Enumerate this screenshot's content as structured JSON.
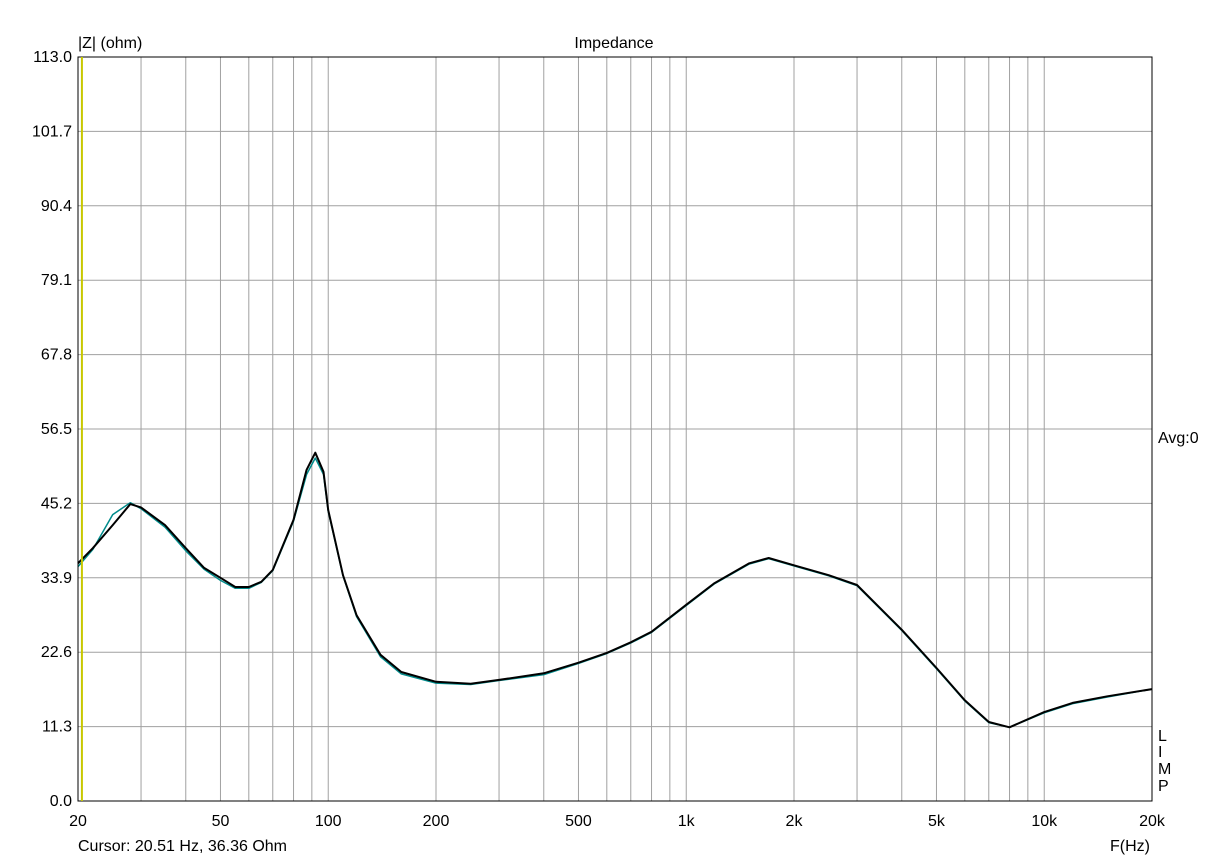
{
  "chart_data": {
    "type": "line",
    "title": "Impedance",
    "xlabel": "F(Hz)",
    "ylabel": "|Z| (ohm)",
    "x_scale": "log",
    "xlim": [
      20,
      20000
    ],
    "ylim": [
      0,
      113
    ],
    "grid": true,
    "y_ticks": [
      "0.0",
      "11.3",
      "22.6",
      "33.9",
      "45.2",
      "56.5",
      "67.8",
      "79.1",
      "90.4",
      "101.7",
      "113.0"
    ],
    "x_ticks": [
      {
        "v": 20,
        "label": "20"
      },
      {
        "v": 50,
        "label": "50"
      },
      {
        "v": 100,
        "label": "100"
      },
      {
        "v": 200,
        "label": "200"
      },
      {
        "v": 500,
        "label": "500"
      },
      {
        "v": 1000,
        "label": "1k"
      },
      {
        "v": 2000,
        "label": "2k"
      },
      {
        "v": 5000,
        "label": "5k"
      },
      {
        "v": 10000,
        "label": "10k"
      },
      {
        "v": 20000,
        "label": "20k"
      }
    ],
    "x": [
      20,
      22,
      25,
      28,
      30,
      35,
      40,
      45,
      50,
      55,
      60,
      65,
      70,
      80,
      87,
      92,
      97,
      100,
      110,
      120,
      140,
      160,
      200,
      250,
      300,
      400,
      500,
      600,
      700,
      800,
      1000,
      1200,
      1500,
      1700,
      2000,
      2500,
      3000,
      4000,
      5000,
      6000,
      7000,
      8000,
      10000,
      12000,
      15000,
      20000
    ],
    "series": [
      {
        "color": "#008b8b",
        "values": [
          35.6,
          38.2,
          43.5,
          45.3,
          44.4,
          41.6,
          38.0,
          35.2,
          33.5,
          32.3,
          32.3,
          33.2,
          35.0,
          42.5,
          49.6,
          52.1,
          49.6,
          44.0,
          34.2,
          28.0,
          21.9,
          19.3,
          17.9,
          17.7,
          18.3,
          19.2,
          20.9,
          22.4,
          24.0,
          25.6,
          29.7,
          33.0,
          36.0,
          36.8,
          35.7,
          34.2,
          32.7,
          25.9,
          20.1,
          15.2,
          11.9,
          11.2,
          13.4,
          14.8,
          15.8,
          17.0
        ]
      },
      {
        "color": "#000000",
        "values": [
          36.1,
          38.4,
          41.9,
          45.1,
          44.6,
          41.9,
          38.4,
          35.4,
          33.9,
          32.5,
          32.5,
          33.3,
          35.1,
          42.7,
          50.3,
          52.9,
          50.0,
          44.2,
          34.3,
          28.2,
          22.2,
          19.6,
          18.1,
          17.8,
          18.4,
          19.4,
          21.0,
          22.5,
          24.1,
          25.7,
          29.8,
          33.1,
          36.1,
          36.9,
          35.8,
          34.3,
          32.8,
          26.0,
          20.2,
          15.3,
          12.0,
          11.2,
          13.5,
          14.9,
          15.9,
          17.0
        ]
      }
    ],
    "cursor": {
      "freq": 20.51,
      "text": "Cursor: 20.51 Hz, 36.36 Ohm",
      "color": "#c8c800"
    },
    "right_label": "Avg:0",
    "logo": [
      "L",
      "I",
      "M",
      "P"
    ]
  }
}
